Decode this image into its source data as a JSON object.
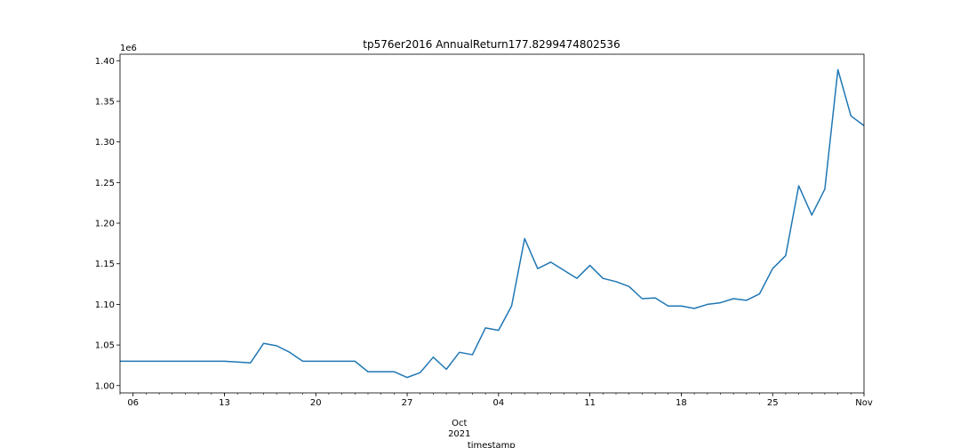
{
  "chart_data": {
    "type": "line",
    "title": "tp576er2016 AnnualReturn177.8299474802536",
    "xlabel": "timestamp",
    "ylabel": "",
    "y_offset_label": "1e6",
    "scale": 1000000,
    "x_start": "2021-09-05",
    "x_end": "2021-11-01",
    "ylim": [
      0.991,
      1.408
    ],
    "yticks": [
      1.0,
      1.05,
      1.1,
      1.15,
      1.2,
      1.25,
      1.3,
      1.35,
      1.4
    ],
    "ytick_labels": [
      "1.00",
      "1.05",
      "1.10",
      "1.15",
      "1.20",
      "1.25",
      "1.30",
      "1.35",
      "1.40"
    ],
    "xticks": [
      {
        "date": "2021-09-06",
        "label": "06"
      },
      {
        "date": "2021-09-13",
        "label": "13"
      },
      {
        "date": "2021-09-20",
        "label": "20"
      },
      {
        "date": "2021-09-27",
        "label": "27"
      },
      {
        "date": "2021-10-04",
        "label": "04"
      },
      {
        "date": "2021-10-11",
        "label": "11"
      },
      {
        "date": "2021-10-18",
        "label": "18"
      },
      {
        "date": "2021-10-25",
        "label": "25"
      },
      {
        "date": "2021-11-01",
        "label": "Nov"
      }
    ],
    "month_label": {
      "date": "2021-10-01",
      "month": "Oct",
      "year": "2021"
    },
    "series": [
      {
        "color": "#1f77b4",
        "x": [
          "2021-09-05",
          "2021-09-06",
          "2021-09-07",
          "2021-09-08",
          "2021-09-09",
          "2021-09-10",
          "2021-09-11",
          "2021-09-12",
          "2021-09-13",
          "2021-09-14",
          "2021-09-15",
          "2021-09-16",
          "2021-09-17",
          "2021-09-18",
          "2021-09-19",
          "2021-09-20",
          "2021-09-21",
          "2021-09-22",
          "2021-09-23",
          "2021-09-24",
          "2021-09-25",
          "2021-09-26",
          "2021-09-27",
          "2021-09-28",
          "2021-09-29",
          "2021-09-30",
          "2021-10-01",
          "2021-10-02",
          "2021-10-03",
          "2021-10-04",
          "2021-10-05",
          "2021-10-06",
          "2021-10-07",
          "2021-10-08",
          "2021-10-09",
          "2021-10-10",
          "2021-10-11",
          "2021-10-12",
          "2021-10-13",
          "2021-10-14",
          "2021-10-15",
          "2021-10-16",
          "2021-10-17",
          "2021-10-18",
          "2021-10-19",
          "2021-10-20",
          "2021-10-21",
          "2021-10-22",
          "2021-10-23",
          "2021-10-24",
          "2021-10-25",
          "2021-10-26",
          "2021-10-27",
          "2021-10-28",
          "2021-10-29",
          "2021-10-30",
          "2021-10-31",
          "2021-11-01"
        ],
        "y": [
          1.03,
          1.03,
          1.03,
          1.03,
          1.03,
          1.03,
          1.03,
          1.03,
          1.03,
          1.029,
          1.028,
          1.052,
          1.049,
          1.041,
          1.03,
          1.03,
          1.03,
          1.03,
          1.03,
          1.017,
          1.017,
          1.017,
          1.01,
          1.016,
          1.035,
          1.02,
          1.041,
          1.038,
          1.071,
          1.068,
          1.098,
          1.181,
          1.144,
          1.152,
          1.142,
          1.132,
          1.148,
          1.132,
          1.128,
          1.122,
          1.107,
          1.108,
          1.098,
          1.098,
          1.095,
          1.1,
          1.102,
          1.107,
          1.105,
          1.113,
          1.144,
          1.16,
          1.246,
          1.21,
          1.242,
          1.389,
          1.332,
          1.32
        ]
      }
    ]
  }
}
